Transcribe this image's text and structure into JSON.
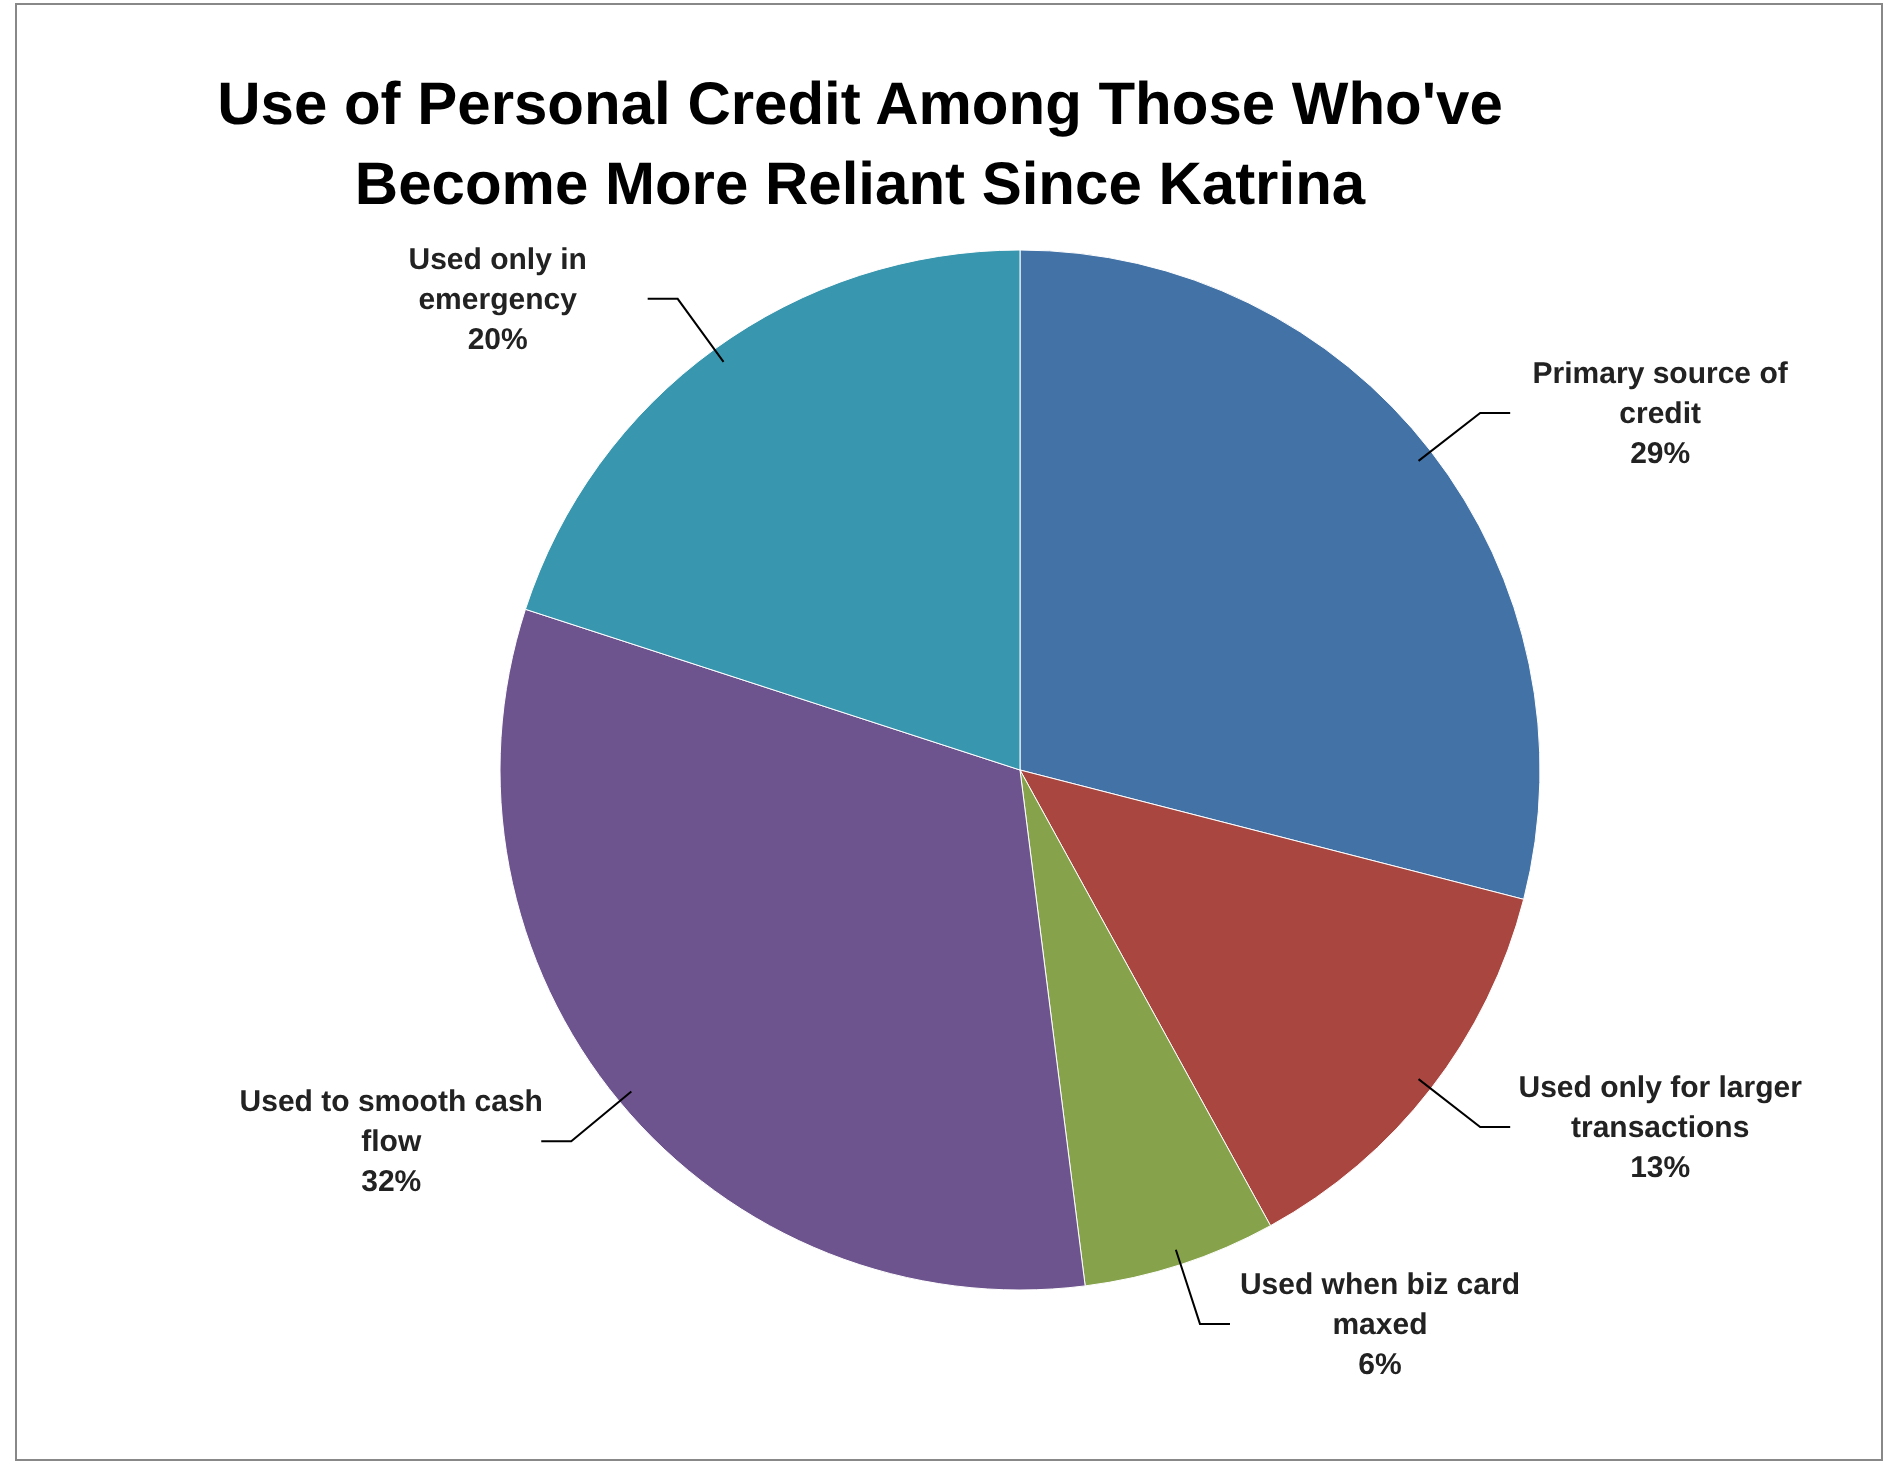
{
  "chart_data": {
    "type": "pie",
    "title": "Use of Personal Credit Among Those Who've Become More Reliant Since Katrina",
    "categories": [
      "Primary source of credit",
      "Used only for larger transactions",
      "Used when biz card maxed",
      "Used to smooth cash flow",
      "Used only in emergency"
    ],
    "values": [
      29,
      13,
      6,
      32,
      20
    ],
    "colors": [
      "#4372a7",
      "#aa4640",
      "#86a24a",
      "#6e548e",
      "#3897ae"
    ],
    "value_labels": [
      "29%",
      "13%",
      "6%",
      "32%",
      "20%"
    ]
  }
}
